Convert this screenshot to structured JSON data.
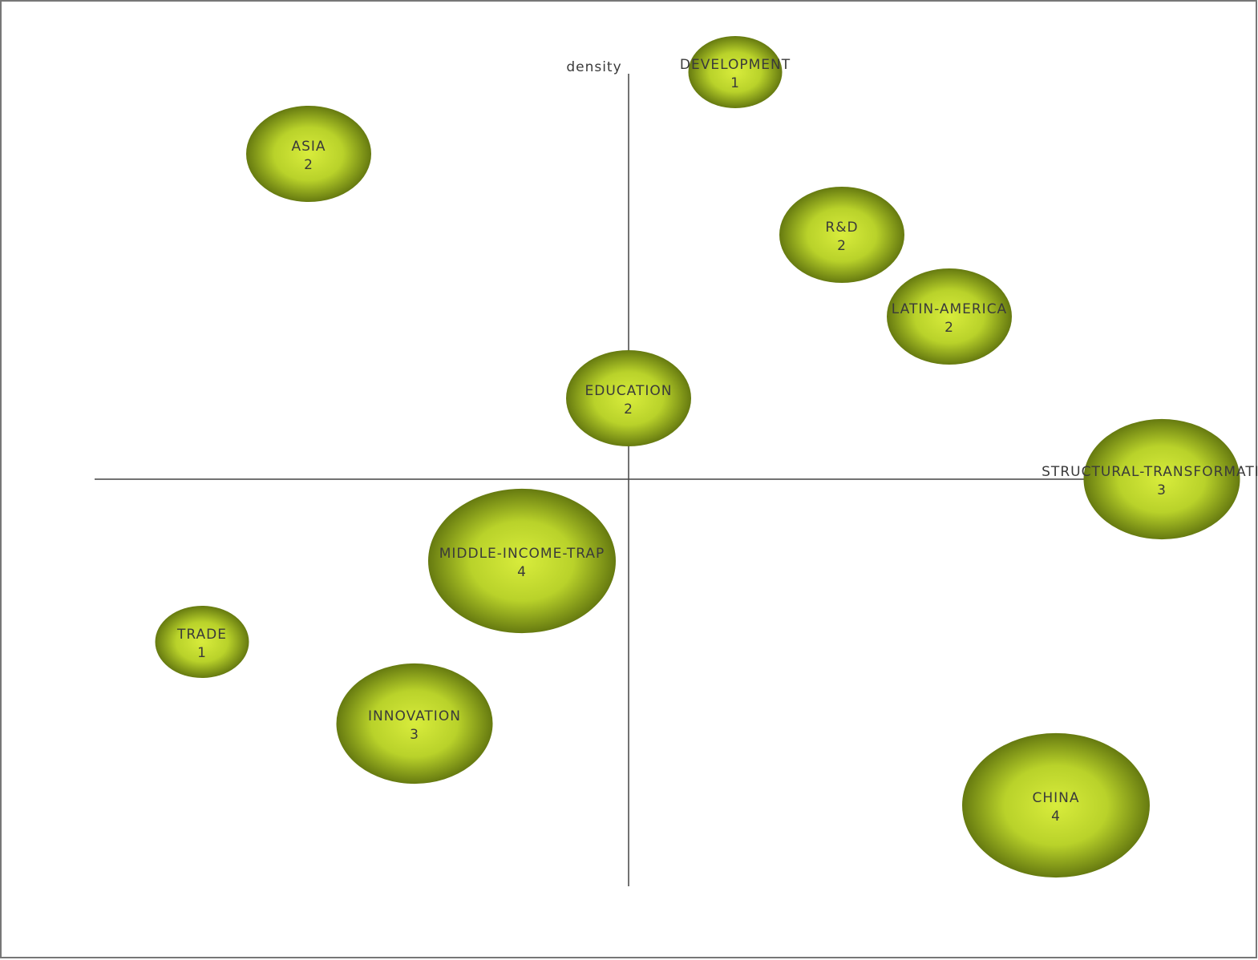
{
  "axes": {
    "y_label": "density"
  },
  "nodes": [
    {
      "label": "DEVELOPMENT",
      "count": 1
    },
    {
      "label": "ASIA",
      "count": 2
    },
    {
      "label": "R&D",
      "count": 2
    },
    {
      "label": "LATIN-AMERICA",
      "count": 2
    },
    {
      "label": "EDUCATION",
      "count": 2
    },
    {
      "label": "STRUCTURAL-TRANSFORMATION",
      "count": 3
    },
    {
      "label": "MIDDLE-INCOME-TRAP",
      "count": 4
    },
    {
      "label": "TRADE",
      "count": 1
    },
    {
      "label": "INNOVATION",
      "count": 3
    },
    {
      "label": "CHINA",
      "count": 4
    }
  ]
}
